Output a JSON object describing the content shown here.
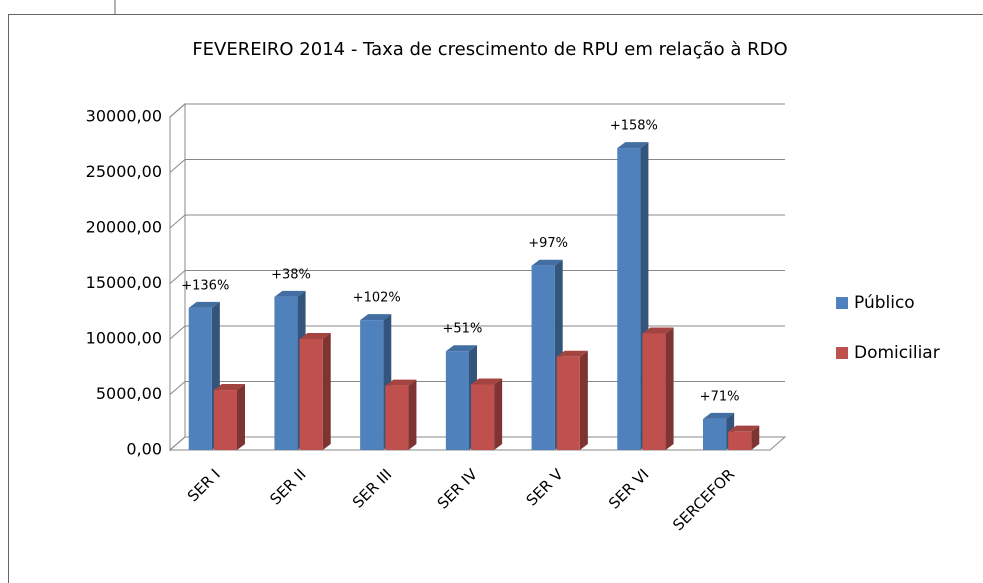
{
  "chart_data": {
    "type": "bar3d",
    "title": "FEVEREIRO 2014 - Taxa de crescimento de RPU em relação à RDO",
    "categories": [
      "SER I",
      "SER II",
      "SER III",
      "SER IV",
      "SER V",
      "SER VI",
      "SERCEFOR"
    ],
    "series": [
      {
        "name": "Público",
        "color": "#4f81bd",
        "values": [
          12800,
          13800,
          11700,
          8900,
          16600,
          27200,
          2800
        ]
      },
      {
        "name": "Domiciliar",
        "color": "#c0504d",
        "values": [
          5400,
          10000,
          5800,
          5900,
          8400,
          10500,
          1650
        ]
      }
    ],
    "growth_labels": [
      "+136%",
      "+38%",
      "+102%",
      "+51%",
      "+97%",
      "+158%",
      "+71%"
    ],
    "ylim": [
      0,
      30000
    ],
    "yticks": [
      {
        "value": 0,
        "label": "0,00"
      },
      {
        "value": 5000,
        "label": "5000,00"
      },
      {
        "value": 10000,
        "label": "10000,00"
      },
      {
        "value": 15000,
        "label": "15000,00"
      },
      {
        "value": 20000,
        "label": "20000,00"
      },
      {
        "value": 25000,
        "label": "25000,00"
      },
      {
        "value": 30000,
        "label": "30000,00"
      }
    ],
    "grid": true,
    "legend": "right"
  }
}
